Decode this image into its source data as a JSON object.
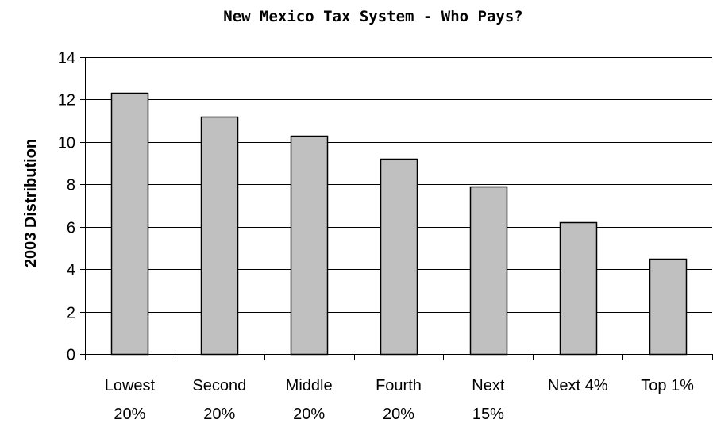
{
  "chart_data": {
    "type": "bar",
    "title": "New Mexico Tax System - Who Pays?",
    "xlabel": "",
    "ylabel": "2003 Distribution",
    "ylim": [
      0,
      14
    ],
    "yticks": [
      0,
      2,
      4,
      6,
      8,
      10,
      12,
      14
    ],
    "grid": true,
    "legend": "none",
    "categories": [
      [
        "Lowest",
        "20%"
      ],
      [
        "Second",
        "20%"
      ],
      [
        "Middle",
        "20%"
      ],
      [
        "Fourth",
        "20%"
      ],
      [
        "Next",
        "15%"
      ],
      [
        "Next 4%"
      ],
      [
        "Top 1%"
      ]
    ],
    "values": [
      12.3,
      11.2,
      10.3,
      9.2,
      7.9,
      6.2,
      4.5
    ],
    "bar_color": "#c0c0c0",
    "bar_edge_color": "#000000",
    "grid_color": "#000000"
  }
}
